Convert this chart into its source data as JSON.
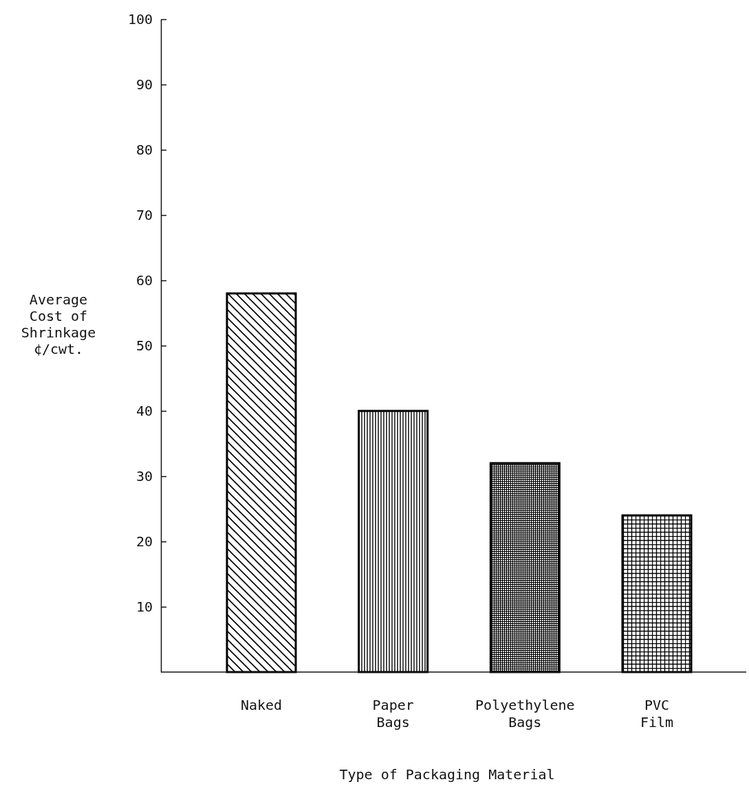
{
  "chart_data": {
    "type": "bar",
    "xlabel": "Type of Packaging Material",
    "ylabel": "Average\nCost of\nShrinkage\n¢/cwt.",
    "categories": [
      "Naked",
      "Paper Bags",
      "Polyethylene Bags",
      "PVC Film"
    ],
    "values": [
      58,
      40,
      32,
      24
    ],
    "color": "#000000",
    "ylim": [
      0,
      100
    ],
    "yticks": [
      10,
      20,
      30,
      40,
      50,
      60,
      70,
      80,
      90,
      100
    ],
    "grid": false
  }
}
